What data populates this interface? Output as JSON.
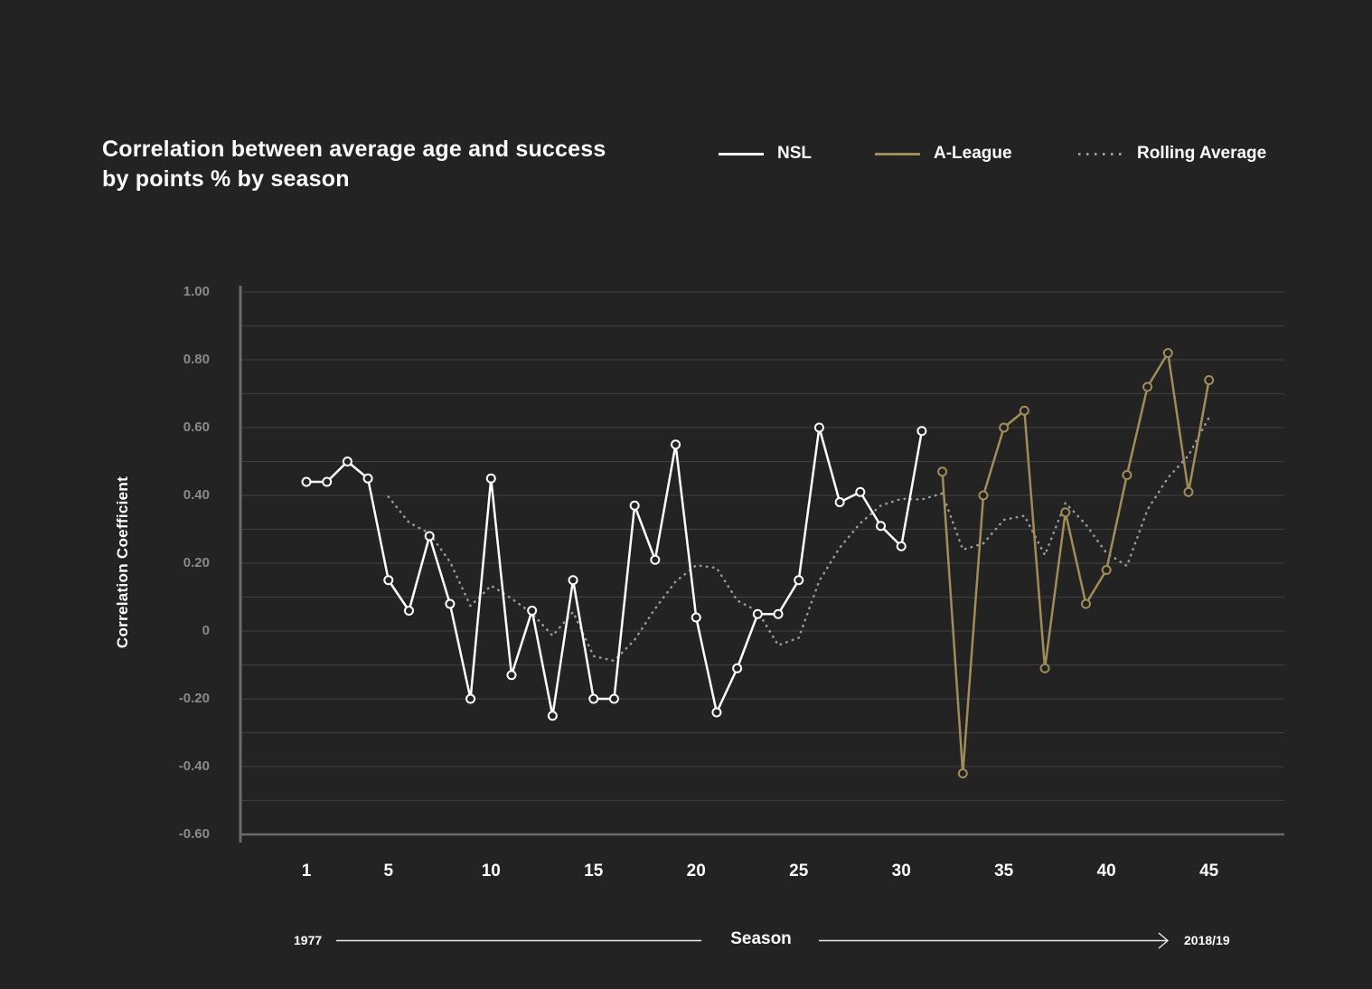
{
  "title": {
    "line1": "Correlation between average age and success",
    "line2": "by points % by season"
  },
  "legend": {
    "items": [
      {
        "label": "NSL",
        "color": "#ffffff",
        "style": "solid"
      },
      {
        "label": "A-League",
        "color": "#a18d58",
        "style": "solid"
      },
      {
        "label": "Rolling Average",
        "color": "#9b9b9b",
        "style": "dotted"
      }
    ]
  },
  "y_axis": {
    "title": "Correlation Coefficient",
    "ticks": [
      {
        "label": "1.00",
        "value": 1.0
      },
      {
        "label": "0.80",
        "value": 0.8
      },
      {
        "label": "0.60",
        "value": 0.6
      },
      {
        "label": "0.40",
        "value": 0.4
      },
      {
        "label": "0.20",
        "value": 0.2
      },
      {
        "label": "0",
        "value": 0
      },
      {
        "label": "-0.20",
        "value": -0.2
      },
      {
        "label": "-0.40",
        "value": -0.4
      },
      {
        "label": "-0.60",
        "value": -0.6
      }
    ]
  },
  "x_axis": {
    "ticks": [
      "1",
      "5",
      "10",
      "15",
      "20",
      "25",
      "30",
      "35",
      "40",
      "45"
    ],
    "tick_values": [
      1,
      5,
      10,
      15,
      20,
      25,
      30,
      35,
      40,
      45
    ],
    "era_start": "1977",
    "label": "Season",
    "era_end": "2018/19"
  },
  "colors": {
    "background": "#232323",
    "grid": "#3c3c3c",
    "axis": "#6b6b6b",
    "nsl": "#ffffff",
    "a_league": "#a18d58",
    "rolling": "#9b9b9b"
  },
  "chart_data": {
    "type": "line",
    "title": "Correlation between average age and success by points % by season",
    "xlabel": "Season",
    "ylabel": "Correlation Coefficient",
    "xlim": [
      1,
      45
    ],
    "ylim": [
      -0.6,
      1.0
    ],
    "y_grid_step": 0.1,
    "x_ticks": [
      1,
      5,
      10,
      15,
      20,
      25,
      30,
      35,
      40,
      45
    ],
    "x_range_labels": {
      "start": "1977",
      "end": "2018/19"
    },
    "legend_position": "top-right",
    "grid": true,
    "series": [
      {
        "name": "NSL",
        "color": "#ffffff",
        "line_style": "solid",
        "markers": "open-circle",
        "x_start": 1,
        "values": [
          0.44,
          0.44,
          0.5,
          0.45,
          0.15,
          0.06,
          0.28,
          0.08,
          -0.2,
          0.45,
          -0.13,
          0.06,
          -0.25,
          0.15,
          -0.2,
          -0.2,
          0.37,
          0.21,
          0.55,
          0.04,
          -0.24,
          -0.11,
          0.05,
          0.05,
          0.15,
          0.6,
          0.38,
          0.41,
          0.31,
          0.25,
          0.59
        ]
      },
      {
        "name": "A-League",
        "color": "#a18d58",
        "line_style": "solid",
        "markers": "open-circle",
        "x_start": 32,
        "values": [
          0.47,
          -0.42,
          0.4,
          0.6,
          0.65,
          -0.11,
          0.35,
          0.08,
          0.18,
          0.46,
          0.72,
          0.82,
          0.41,
          0.74
        ]
      },
      {
        "name": "Rolling Average",
        "color": "#9b9b9b",
        "line_style": "dotted",
        "markers": "none",
        "x_start": 5,
        "values": [
          0.396,
          0.32,
          0.288,
          0.204,
          0.074,
          0.134,
          0.096,
          0.052,
          -0.014,
          0.056,
          -0.074,
          -0.088,
          -0.026,
          0.066,
          0.146,
          0.194,
          0.186,
          0.09,
          0.058,
          -0.042,
          -0.02,
          0.148,
          0.246,
          0.318,
          0.37,
          0.39,
          0.388,
          0.406,
          0.24,
          0.258,
          0.328,
          0.34,
          0.224,
          0.378,
          0.314,
          0.23,
          0.192,
          0.358,
          0.452,
          0.518,
          0.63
        ]
      }
    ]
  }
}
